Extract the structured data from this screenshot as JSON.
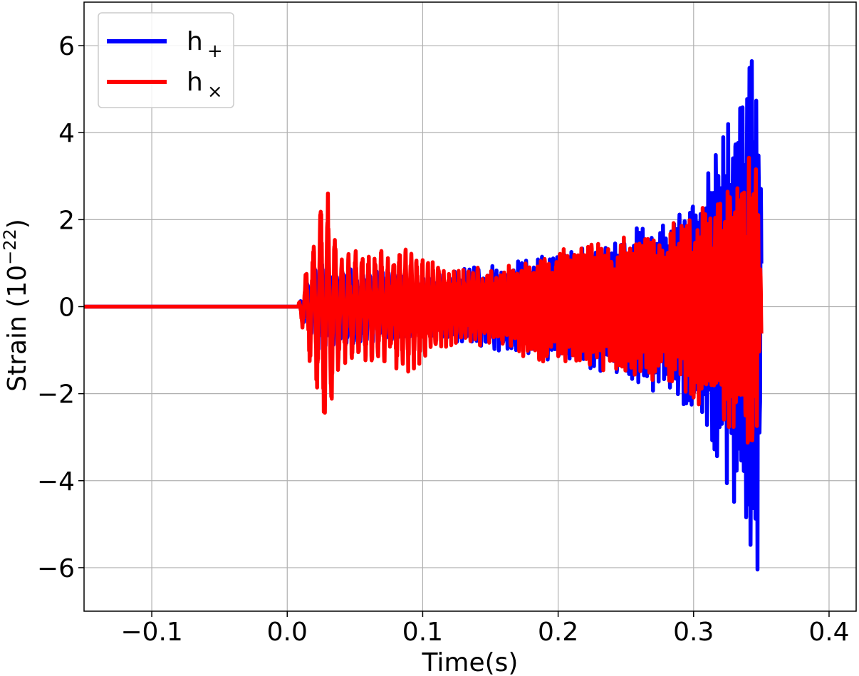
{
  "chart_data": {
    "type": "line",
    "title": "",
    "xlabel": "Time(s)",
    "ylabel": "Strain (10",
    "ylabel_exponent": "−22",
    "ylabel_close": ")",
    "xlim": [
      -0.15,
      0.42
    ],
    "ylim": [
      -7.0,
      7.0
    ],
    "xticks": [
      -0.1,
      0.0,
      0.1,
      0.2,
      0.3,
      0.4
    ],
    "xtick_labels": [
      "−0.1",
      "0.0",
      "0.1",
      "0.2",
      "0.3",
      "0.4"
    ],
    "yticks": [
      -6,
      -4,
      -2,
      0,
      2,
      4,
      6
    ],
    "ytick_labels": [
      "−6",
      "−4",
      "−2",
      "0",
      "2",
      "4",
      "6"
    ],
    "grid": true,
    "legend": "top-left",
    "series": [
      {
        "name": "h",
        "name_sub": "+",
        "color": "#0000ff",
        "envelope": [
          [
            -0.15,
            0.0
          ],
          [
            0.0,
            0.0
          ],
          [
            0.008,
            0.0
          ],
          [
            0.02,
            1.0
          ],
          [
            0.05,
            0.9
          ],
          [
            0.1,
            0.7
          ],
          [
            0.15,
            1.0
          ],
          [
            0.2,
            1.3
          ],
          [
            0.25,
            1.7
          ],
          [
            0.28,
            2.1
          ],
          [
            0.3,
            2.6
          ],
          [
            0.32,
            3.8
          ],
          [
            0.335,
            5.4
          ],
          [
            0.343,
            6.4
          ],
          [
            0.348,
            6.2
          ],
          [
            0.35,
            3.4
          ]
        ]
      },
      {
        "name": "h",
        "name_sub": "×",
        "color": "#ff0000",
        "envelope": [
          [
            -0.15,
            0.0
          ],
          [
            0.0,
            0.0
          ],
          [
            0.008,
            0.0
          ],
          [
            0.018,
            1.6
          ],
          [
            0.027,
            3.0
          ],
          [
            0.04,
            1.4
          ],
          [
            0.06,
            1.3
          ],
          [
            0.09,
            1.5
          ],
          [
            0.12,
            0.9
          ],
          [
            0.15,
            0.9
          ],
          [
            0.2,
            1.4
          ],
          [
            0.25,
            1.6
          ],
          [
            0.28,
            1.9
          ],
          [
            0.3,
            2.2
          ],
          [
            0.32,
            2.6
          ],
          [
            0.336,
            3.3
          ],
          [
            0.345,
            3.8
          ],
          [
            0.35,
            0.9
          ]
        ]
      }
    ]
  }
}
